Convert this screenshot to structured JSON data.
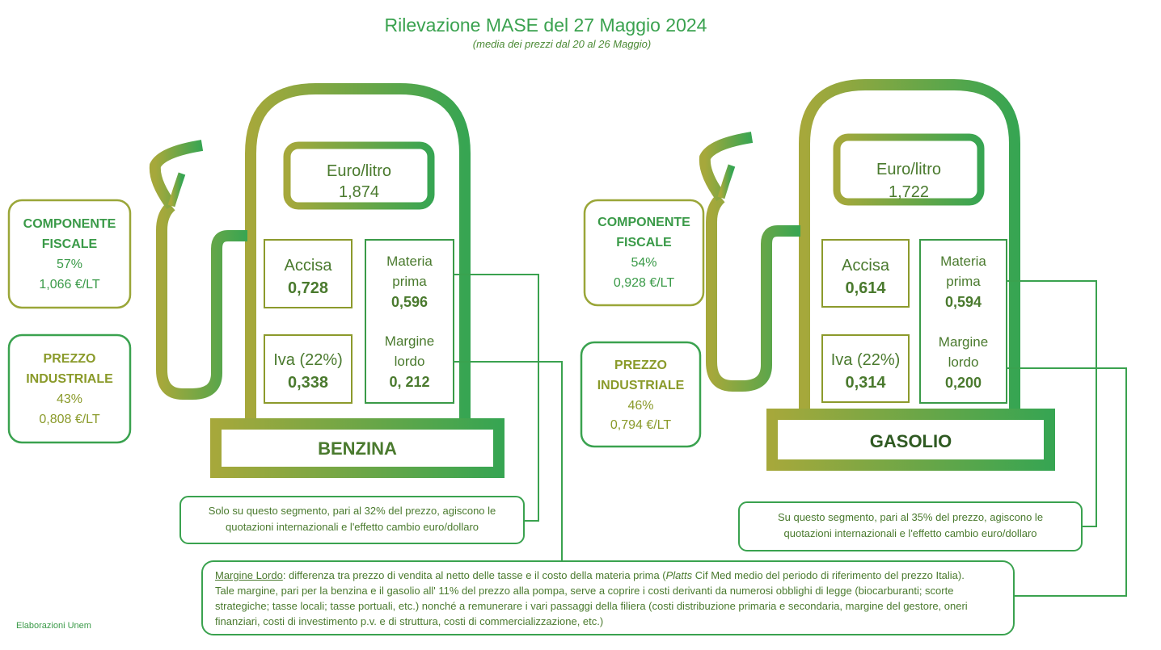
{
  "header": {
    "title": "Rilevazione MASE del 27 Maggio 2024",
    "subtitle": "(media dei prezzi dal 20 al 26 Maggio)"
  },
  "colors": {
    "olive": "#a3a83a",
    "green": "#3aa24f",
    "text": "#4a7a2e"
  },
  "benzina": {
    "fuel_label": "BENZINA",
    "price_label": "Euro/litro",
    "price_value": "1,874",
    "accisa_label": "Accisa",
    "accisa_value": "0,728",
    "iva_label": "Iva (22%)",
    "iva_value": "0,338",
    "materia_label_1": "Materia",
    "materia_label_2": "prima",
    "materia_value": "0,596",
    "margine_label_1": "Margine",
    "margine_label_2": "lordo",
    "margine_value": "0, 212",
    "fiscale": {
      "line1": "COMPONENTE",
      "line2": "FISCALE",
      "percent": "57%",
      "amount": "1,066 €/LT"
    },
    "industriale": {
      "line1": "PREZZO",
      "line2": "INDUSTRIALE",
      "percent": "43%",
      "amount": "0,808 €/LT"
    },
    "segment_note_1": "Solo su questo segmento, pari al 32% del prezzo, agiscono le",
    "segment_note_2": "quotazioni internazionali e l'effetto cambio euro/dollaro"
  },
  "gasolio": {
    "fuel_label": "GASOLIO",
    "price_label": "Euro/litro",
    "price_value": "1,722",
    "accisa_label": "Accisa",
    "accisa_value": "0,614",
    "iva_label": "Iva (22%)",
    "iva_value": "0,314",
    "materia_label_1": "Materia",
    "materia_label_2": "prima",
    "materia_value": "0,594",
    "margine_label_1": "Margine",
    "margine_label_2": "lordo",
    "margine_value": "0,200",
    "fiscale": {
      "line1": "COMPONENTE",
      "line2": "FISCALE",
      "percent": "54%",
      "amount": "0,928 €/LT"
    },
    "industriale": {
      "line1": "PREZZO",
      "line2": "INDUSTRIALE",
      "percent": "46%",
      "amount": "0,794 €/LT"
    },
    "segment_note_1": "Su questo segmento, pari al 35% del prezzo, agiscono le",
    "segment_note_2": "quotazioni internazionali e l'effetto cambio euro/dollaro"
  },
  "margin_note": {
    "term": "Margine Lordo",
    "part1": ": differenza tra prezzo di vendita al netto delle tasse e il costo della materia prima (",
    "platts": "Platts",
    "part2": " Cif Med medio del periodo di riferimento del prezzo Italia).",
    "line2": "Tale margine, pari per la benzina e il gasolio all' 11% del prezzo alla pompa, serve a coprire i costi derivanti da numerosi obblighi di legge (biocarburanti; scorte",
    "line3": "strategiche; tasse locali; tasse portuali, etc.) nonché a remunerare i vari passaggi della filiera (costi distribuzione primaria e secondaria, margine del gestore, oneri",
    "line4": "finanziari, costi di investimento p.v. e di struttura, costi di commercializzazione, etc.)"
  },
  "footer": "Elaborazioni Unem"
}
